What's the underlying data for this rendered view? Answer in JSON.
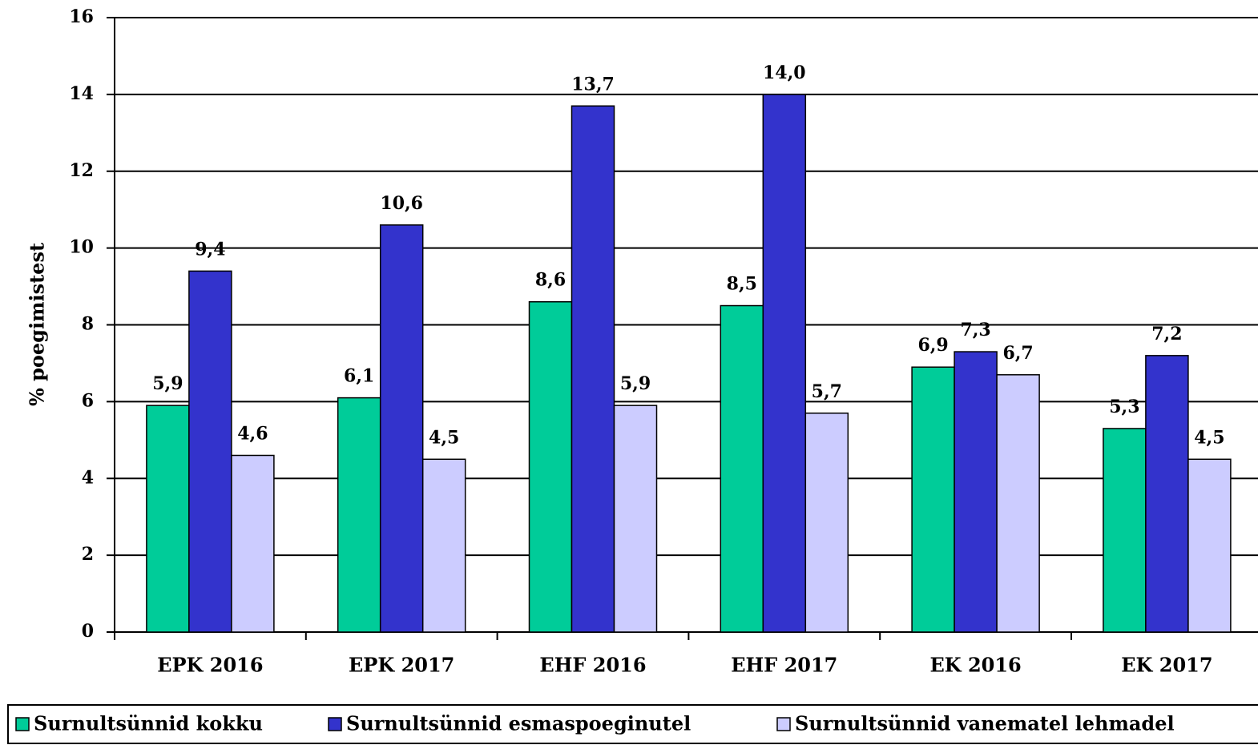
{
  "chart_data": {
    "type": "bar",
    "y_label": "% poegimistest",
    "categories": [
      "EPK 2016",
      "EPK 2017",
      "EHF 2016",
      "EHF 2017",
      "EK 2016",
      "EK 2017"
    ],
    "series": [
      {
        "name": "Surnultsünnid kokku",
        "color": "#00cc99",
        "values": [
          5.9,
          6.1,
          8.6,
          8.5,
          6.9,
          5.3
        ],
        "value_labels": [
          "5,9",
          "6,1",
          "8,6",
          "8,5",
          "6,9",
          "5,3"
        ]
      },
      {
        "name": "Surnultsünnid esmaspoeginutel",
        "color": "#3333cc",
        "values": [
          9.4,
          10.6,
          13.7,
          14.0,
          7.3,
          7.2
        ],
        "value_labels": [
          "9,4",
          "10,6",
          "13,7",
          "14,0",
          "7,3",
          "7,2"
        ]
      },
      {
        "name": "Surnultsünnid vanematel lehmadel",
        "color": "#ccccff",
        "values": [
          4.6,
          4.5,
          5.9,
          5.7,
          6.7,
          4.5
        ],
        "value_labels": [
          "4,6",
          "4,5",
          "5,9",
          "5,7",
          "6,7",
          "4,5"
        ]
      }
    ],
    "ylim": [
      0,
      16
    ],
    "yticks": [
      0,
      2,
      4,
      6,
      8,
      10,
      12,
      14,
      16
    ],
    "grid": true,
    "legend": "bottom"
  }
}
